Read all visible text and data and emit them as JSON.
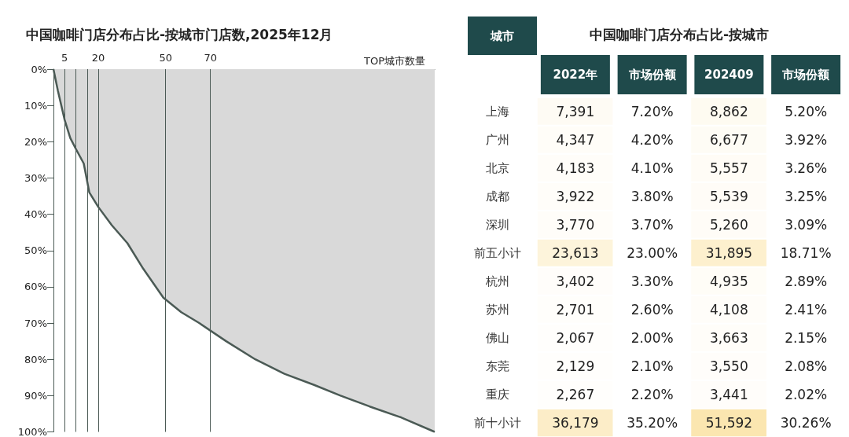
{
  "chart_data": [
    {
      "type": "area",
      "title": "中国咖啡门店分布占比-按城市门店数,2025年12月",
      "xlabel": "TOP城市数量",
      "x": [
        0,
        2,
        5,
        7.5,
        10,
        13.5,
        16,
        20,
        26,
        33,
        40,
        49,
        57,
        65,
        77,
        90,
        103,
        116,
        128,
        141,
        155,
        170
      ],
      "values": [
        0,
        6,
        14,
        19,
        22,
        26,
        34,
        38,
        43,
        48,
        55,
        63,
        67,
        70,
        75,
        80,
        84,
        87,
        90,
        93,
        96,
        100
      ],
      "color": "#4b5a55",
      "xlim": [
        0,
        170
      ],
      "xticks": [
        5,
        {
          "value": 10,
          "label": null
        },
        {
          "value": 15,
          "label": null
        },
        20,
        50,
        70
      ],
      "ylim": [
        100,
        0
      ],
      "yticks": [
        {
          "value": 0,
          "label": "0%"
        },
        {
          "value": 10,
          "label": "10%"
        },
        {
          "value": 20,
          "label": "20%"
        },
        {
          "value": 30,
          "label": "30%"
        },
        {
          "value": 40,
          "label": "40%"
        },
        {
          "value": 50,
          "label": "50%"
        },
        {
          "value": 60,
          "label": "60%"
        },
        {
          "value": 70,
          "label": "70%"
        },
        {
          "value": 80,
          "label": "80%"
        },
        {
          "value": 90,
          "label": "90%"
        },
        {
          "value": 100,
          "label": "100%"
        }
      ],
      "grid": "x",
      "marker": "none"
    },
    {
      "type": "heatmap",
      "title": "中国咖啡门店分布占比-按城市",
      "ylabel": "城市",
      "categories": [
        "2022年",
        "市场份额",
        "202409",
        "市场份额"
      ],
      "y_categories": [
        "上海",
        "广州",
        "北京",
        "成都",
        "深圳",
        "前五小计",
        "杭州",
        "苏州",
        "佛山",
        "东莞",
        "重庆",
        "前十小计"
      ],
      "cells": [
        [
          7391,
          7.2,
          8862,
          5.2
        ],
        [
          4347,
          4.2,
          6677,
          3.92
        ],
        [
          4183,
          4.1,
          5557,
          3.26
        ],
        [
          3922,
          3.8,
          5539,
          3.25
        ],
        [
          3770,
          3.7,
          5260,
          3.09
        ],
        [
          23613,
          23.0,
          31895,
          18.71
        ],
        [
          3402,
          3.3,
          4935,
          2.89
        ],
        [
          2701,
          2.6,
          4108,
          2.41
        ],
        [
          2067,
          2.0,
          3663,
          2.15
        ],
        [
          2129,
          2.1,
          3550,
          2.08
        ],
        [
          2267,
          2.2,
          3441,
          2.02
        ],
        [
          36179,
          35.2,
          51592,
          30.26
        ]
      ],
      "cell_labels": [
        [
          "7,391",
          "7.20%",
          "8,862",
          "5.20%"
        ],
        [
          "4,347",
          "4.20%",
          "6,677",
          "3.92%"
        ],
        [
          "4,183",
          "4.10%",
          "5,557",
          "3.26%"
        ],
        [
          "3,922",
          "3.80%",
          "5,539",
          "3.25%"
        ],
        [
          "3,770",
          "3.70%",
          "5,260",
          "3.09%"
        ],
        [
          "23,613",
          "23.00%",
          "31,895",
          "18.71%"
        ],
        [
          "3,402",
          "3.30%",
          "4,935",
          "2.89%"
        ],
        [
          "2,701",
          "2.60%",
          "4,108",
          "2.41%"
        ],
        [
          "2,067",
          "2.00%",
          "3,663",
          "2.15%"
        ],
        [
          "2,129",
          "2.10%",
          "3,550",
          "2.08%"
        ],
        [
          "2,267",
          "2.20%",
          "3,441",
          "2.02%"
        ],
        [
          "36,179",
          "35.20%",
          "51,592",
          "30.26%"
        ]
      ]
    }
  ]
}
